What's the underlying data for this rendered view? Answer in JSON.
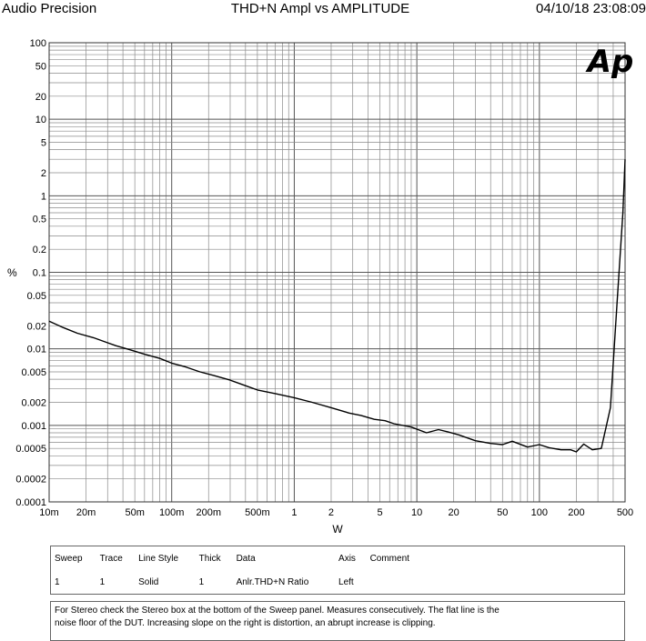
{
  "header": {
    "left": "Audio Precision",
    "center": "THD+N Ampl vs AMPLITUDE",
    "right": "04/10/18 23:08:09"
  },
  "logo": {
    "text": "Ap"
  },
  "chart_data": {
    "type": "line",
    "title": "THD+N Ampl vs AMPLITUDE",
    "xlabel": "W",
    "ylabel": "%",
    "x_scale": "log",
    "y_scale": "log",
    "xlim": [
      0.01,
      500
    ],
    "ylim": [
      0.0001,
      100
    ],
    "grid": true,
    "x_tick_labels": [
      {
        "v": 0.01,
        "t": "10m"
      },
      {
        "v": 0.02,
        "t": "20m"
      },
      {
        "v": 0.05,
        "t": "50m"
      },
      {
        "v": 0.1,
        "t": "100m"
      },
      {
        "v": 0.2,
        "t": "200m"
      },
      {
        "v": 0.5,
        "t": "500m"
      },
      {
        "v": 1,
        "t": "1"
      },
      {
        "v": 2,
        "t": "2"
      },
      {
        "v": 5,
        "t": "5"
      },
      {
        "v": 10,
        "t": "10"
      },
      {
        "v": 20,
        "t": "20"
      },
      {
        "v": 50,
        "t": "50"
      },
      {
        "v": 100,
        "t": "100"
      },
      {
        "v": 200,
        "t": "200"
      },
      {
        "v": 500,
        "t": "500"
      }
    ],
    "y_tick_labels": [
      {
        "v": 100,
        "t": "100"
      },
      {
        "v": 50,
        "t": "50"
      },
      {
        "v": 20,
        "t": "20"
      },
      {
        "v": 10,
        "t": "10"
      },
      {
        "v": 5,
        "t": "5"
      },
      {
        "v": 2,
        "t": "2"
      },
      {
        "v": 1,
        "t": "1"
      },
      {
        "v": 0.5,
        "t": "0.5"
      },
      {
        "v": 0.2,
        "t": "0.2"
      },
      {
        "v": 0.1,
        "t": "0.1"
      },
      {
        "v": 0.05,
        "t": "0.05"
      },
      {
        "v": 0.02,
        "t": "0.02"
      },
      {
        "v": 0.01,
        "t": "0.01"
      },
      {
        "v": 0.005,
        "t": "0.005"
      },
      {
        "v": 0.002,
        "t": "0.002"
      },
      {
        "v": 0.001,
        "t": "0.001"
      },
      {
        "v": 0.0005,
        "t": "0.0005"
      },
      {
        "v": 0.0002,
        "t": "0.0002"
      },
      {
        "v": 0.0001,
        "t": "0.0001"
      }
    ],
    "series": [
      {
        "name": "Anlr.THD+N Ratio",
        "x": [
          0.01,
          0.013,
          0.017,
          0.023,
          0.03,
          0.035,
          0.045,
          0.06,
          0.08,
          0.1,
          0.13,
          0.17,
          0.22,
          0.3,
          0.4,
          0.5,
          0.7,
          1.0,
          1.4,
          2.0,
          2.8,
          3.5,
          4.5,
          5.5,
          6.5,
          9.0,
          12,
          15,
          18,
          22,
          30,
          40,
          50,
          60,
          80,
          100,
          120,
          150,
          180,
          200,
          230,
          270,
          320,
          380,
          430,
          480,
          500
        ],
        "y": [
          0.023,
          0.019,
          0.016,
          0.014,
          0.012,
          0.011,
          0.0098,
          0.0085,
          0.0075,
          0.0065,
          0.0058,
          0.005,
          0.0045,
          0.0039,
          0.0033,
          0.0029,
          0.0026,
          0.0023,
          0.002,
          0.0017,
          0.00145,
          0.00135,
          0.0012,
          0.00115,
          0.00105,
          0.00095,
          0.0008,
          0.00088,
          0.00082,
          0.00075,
          0.00063,
          0.00058,
          0.00056,
          0.00062,
          0.00052,
          0.00056,
          0.00051,
          0.00048,
          0.00048,
          0.00045,
          0.00057,
          0.00048,
          0.0005,
          0.0017,
          0.04,
          0.6,
          3.0
        ]
      }
    ]
  },
  "sweep_table": {
    "headers": [
      "Sweep",
      "Trace",
      "Line Style",
      "Thick",
      "Data",
      "Axis",
      "Comment"
    ],
    "rows": [
      [
        "1",
        "1",
        "Solid",
        "1",
        "Anlr.THD+N Ratio",
        "Left",
        ""
      ]
    ]
  },
  "note": {
    "line1": "For Stereo check the Stereo box at the bottom of the Sweep panel.  Measures consecutively.  The flat line is the",
    "line2": "noise floor of the DUT.  Increasing slope on the right is distortion, an abrupt increase is clipping."
  }
}
